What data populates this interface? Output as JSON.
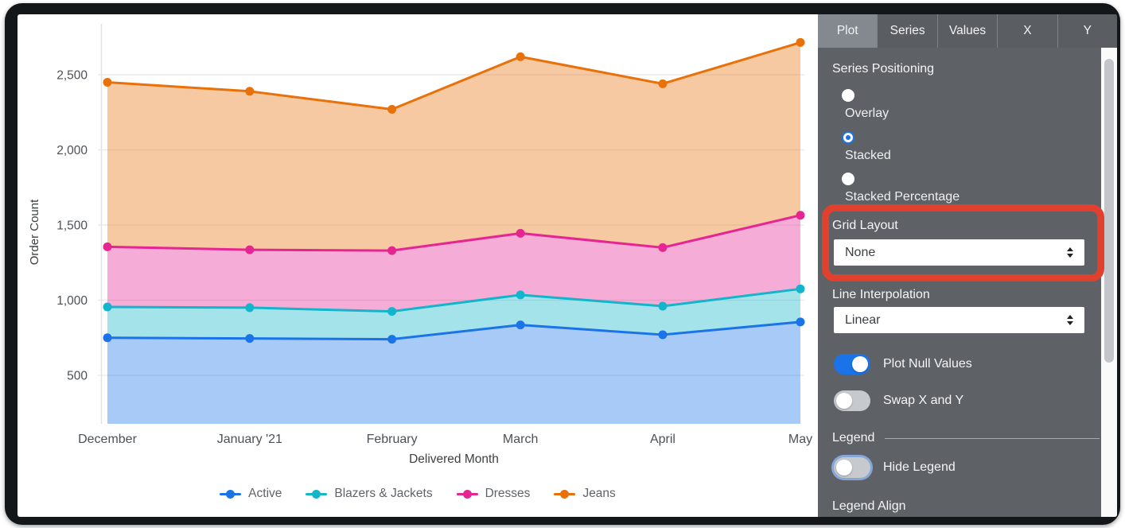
{
  "panel": {
    "tabs": [
      {
        "label": "Plot",
        "active": true
      },
      {
        "label": "Series",
        "active": false
      },
      {
        "label": "Values",
        "active": false
      },
      {
        "label": "X",
        "active": false
      },
      {
        "label": "Y",
        "active": false
      }
    ],
    "series_positioning": {
      "label": "Series Positioning",
      "options": [
        {
          "label": "Overlay",
          "selected": false
        },
        {
          "label": "Stacked",
          "selected": true
        },
        {
          "label": "Stacked Percentage",
          "selected": false
        }
      ]
    },
    "grid_layout": {
      "label": "Grid Layout",
      "value": "None"
    },
    "line_interpolation": {
      "label": "Line Interpolation",
      "value": "Linear"
    },
    "plot_null_values": {
      "label": "Plot Null Values",
      "on": true
    },
    "swap_x_y": {
      "label": "Swap X and Y",
      "on": false
    },
    "legend_section_label": "Legend",
    "hide_legend": {
      "label": "Hide Legend",
      "on": false
    },
    "legend_align_label": "Legend Align"
  },
  "annotation": {
    "shape": "red-rounded-rectangle",
    "highlights": "Grid Layout dropdown",
    "color": "#e2402f"
  },
  "chart_data": {
    "type": "area",
    "stacking": "stacked",
    "title": "",
    "xlabel": "Delivered Month",
    "ylabel": "Order Count",
    "categories": [
      "December",
      "January '21",
      "February",
      "March",
      "April",
      "May"
    ],
    "x_day_offsets": [
      0,
      31,
      62,
      90,
      121,
      151
    ],
    "series": [
      {
        "name": "Active",
        "color": "#1A73E8",
        "values": [
          750,
          745,
          740,
          835,
          770,
          855
        ]
      },
      {
        "name": "Blazers & Jackets",
        "color": "#12B5CB",
        "values": [
          205,
          205,
          185,
          200,
          190,
          220
        ]
      },
      {
        "name": "Dresses",
        "color": "#E52592",
        "values": [
          400,
          385,
          405,
          410,
          390,
          490
        ]
      },
      {
        "name": "Jeans",
        "color": "#E8710A",
        "values": [
          1095,
          1055,
          940,
          1175,
          1090,
          1150
        ]
      }
    ],
    "stacked_tops": {
      "Active": [
        750,
        745,
        740,
        835,
        770,
        855
      ],
      "Blazers & Jackets": [
        955,
        950,
        925,
        1035,
        960,
        1075
      ],
      "Dresses": [
        1355,
        1335,
        1330,
        1445,
        1350,
        1565
      ],
      "Jeans": [
        2450,
        2390,
        2270,
        2620,
        2440,
        2715
      ]
    },
    "yticks": [
      500,
      1000,
      1500,
      2000,
      2500
    ],
    "ylim": [
      177,
      2897
    ],
    "grid": true,
    "legend_position": "bottom",
    "axis_text_color": "#4d5156",
    "grid_color": "#e7e8ea",
    "fill_opacity": 0.38
  }
}
